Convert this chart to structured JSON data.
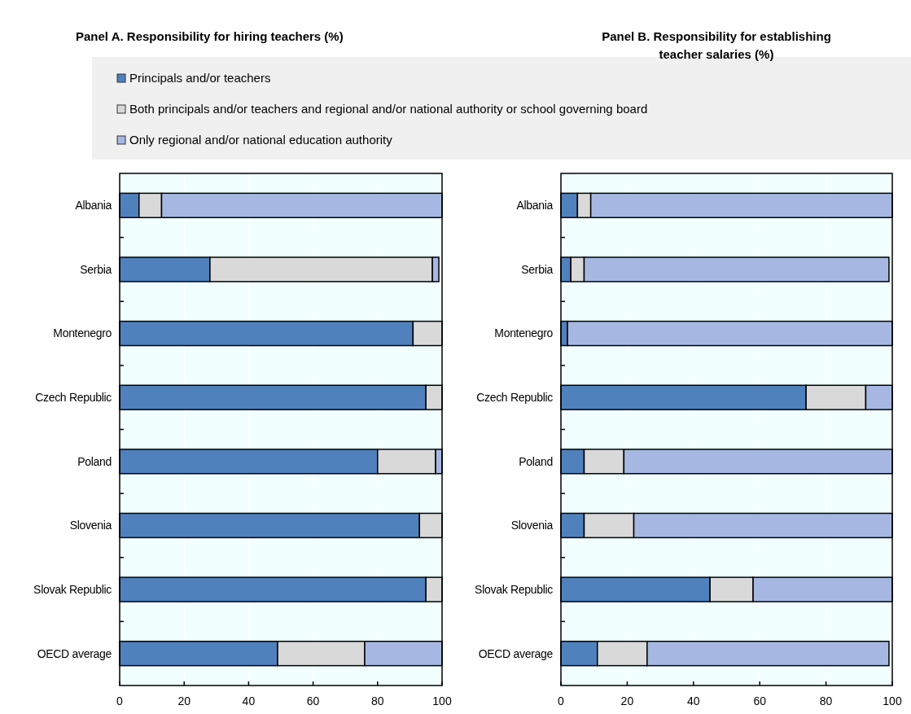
{
  "chart_data": [
    {
      "type": "bar",
      "title": "Panel A. Responsibility for hiring teachers (%)",
      "orientation": "horizontal",
      "stacked": true,
      "legend": "top",
      "grid": "x",
      "categories": [
        "Albania",
        "Serbia",
        "Montenegro",
        "Czech Republic",
        "Poland",
        "Slovenia",
        "Slovak Republic",
        "OECD average"
      ],
      "xlim": [
        0,
        100
      ],
      "xticks": [
        0,
        20,
        40,
        60,
        80,
        100
      ],
      "series": [
        {
          "name": "Principals and/or teachers",
          "color": "#4f81bd",
          "values": [
            6,
            28,
            91,
            95,
            80,
            93,
            95,
            49
          ]
        },
        {
          "name": "Both principals and/or teachers and regional and/or national authority or school governing board",
          "color": "#d9d9d9",
          "values": [
            7,
            69,
            9,
            5,
            18,
            7,
            5,
            27
          ]
        },
        {
          "name": "Only regional and/or national education authority",
          "color": "#a6b8e2",
          "values": [
            87,
            2,
            0,
            0,
            2,
            0,
            0,
            24
          ]
        }
      ]
    },
    {
      "type": "bar",
      "title": "Panel B. Responsibility for establishing teacher salaries (%)",
      "orientation": "horizontal",
      "stacked": true,
      "grid": "x",
      "categories": [
        "Albania",
        "Serbia",
        "Montenegro",
        "Czech Republic",
        "Poland",
        "Slovenia",
        "Slovak Republic",
        "OECD average"
      ],
      "xlim": [
        0,
        100
      ],
      "xticks": [
        0,
        20,
        40,
        60,
        80,
        100
      ],
      "series": [
        {
          "color": "#4f81bd",
          "values": [
            5,
            3,
            2,
            74,
            7,
            7,
            45,
            11
          ]
        },
        {
          "color": "#d9d9d9",
          "values": [
            4,
            4,
            0,
            18,
            12,
            15,
            13,
            15
          ]
        },
        {
          "color": "#a6b8e2",
          "values": [
            91,
            92,
            98,
            8,
            81,
            78,
            42,
            73
          ]
        }
      ]
    }
  ]
}
